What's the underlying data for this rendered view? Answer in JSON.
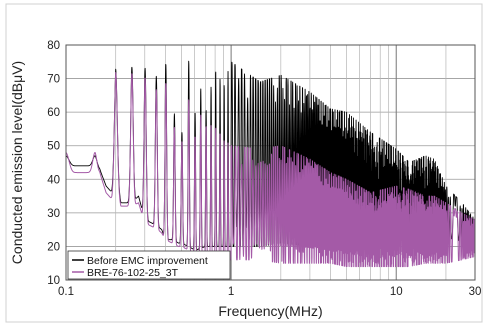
{
  "chart_data": {
    "type": "line",
    "title": "",
    "xlabel": "Frequency(MHz)",
    "ylabel": "Conducted emission level(dBμV)",
    "x_scale": "log",
    "xlim": [
      0.1,
      30
    ],
    "ylim": [
      10,
      80
    ],
    "x_ticks": [
      {
        "value": 0.1,
        "label": "0.1"
      },
      {
        "value": 1,
        "label": "1"
      },
      {
        "value": 10,
        "label": "10"
      },
      {
        "value": 30,
        "label": "30"
      }
    ],
    "y_ticks": [
      {
        "value": 10,
        "label": "10"
      },
      {
        "value": 20,
        "label": "20"
      },
      {
        "value": 30,
        "label": "30"
      },
      {
        "value": 40,
        "label": "40"
      },
      {
        "value": 50,
        "label": "50"
      },
      {
        "value": 60,
        "label": "60"
      },
      {
        "value": 70,
        "label": "70"
      },
      {
        "value": 80,
        "label": "80"
      }
    ],
    "grid": true,
    "legend_position": "bottom-left",
    "series": [
      {
        "name": "Before EMC improvement",
        "color": "#000000",
        "x": [
          0.15,
          0.16,
          0.175,
          0.19,
          0.2,
          0.215,
          0.25,
          0.275,
          0.3,
          0.33,
          0.36,
          0.38,
          0.4,
          0.44,
          0.48,
          0.5,
          0.55,
          0.6,
          0.62,
          0.7,
          0.8,
          0.9,
          1.0,
          1.5,
          2.0,
          3.0,
          4.0,
          5.0,
          7.0,
          10.0,
          12.0,
          15.0,
          17.0,
          20.0,
          25.0,
          30.0
        ],
        "y": [
          47,
          45,
          45,
          55,
          73,
          52,
          74,
          55,
          74,
          55,
          76,
          52,
          76,
          50,
          78,
          52,
          77,
          56,
          73,
          60,
          73,
          68,
          75,
          69,
          71,
          66,
          61,
          60,
          54,
          49,
          45,
          47,
          46,
          38,
          33,
          28
        ],
        "envelope_min": [
          44,
          43,
          38,
          36,
          40,
          33,
          33,
          35,
          28,
          27,
          26,
          25,
          22,
          22,
          21,
          21,
          20,
          19,
          19,
          20,
          20,
          20,
          20,
          20,
          21,
          20,
          20,
          20,
          19,
          20,
          21,
          20,
          20,
          20,
          20,
          20
        ]
      },
      {
        "name": "BRE-76-102-25_3T",
        "color": "#a45aa7",
        "x": [
          0.15,
          0.16,
          0.175,
          0.19,
          0.2,
          0.215,
          0.25,
          0.275,
          0.3,
          0.33,
          0.36,
          0.38,
          0.4,
          0.44,
          0.48,
          0.5,
          0.55,
          0.6,
          0.62,
          0.7,
          0.8,
          0.9,
          1.0,
          1.5,
          2.0,
          3.0,
          4.0,
          5.0,
          7.0,
          10.0,
          12.0,
          15.0,
          17.0,
          20.0,
          25.0,
          30.0
        ],
        "y": [
          48,
          45,
          45,
          55,
          72,
          52,
          72,
          55,
          71,
          54,
          71,
          52,
          70,
          49,
          68,
          50,
          65,
          50,
          62,
          56,
          56,
          52,
          50,
          49,
          50,
          46,
          42,
          40,
          36,
          38,
          37,
          35,
          35,
          33,
          30,
          28
        ],
        "envelope_min": [
          42,
          42,
          36,
          34,
          38,
          32,
          32,
          33,
          27,
          26,
          25,
          24,
          22,
          21,
          20,
          20,
          19,
          18,
          18,
          17,
          17,
          16,
          16,
          16,
          15,
          15,
          15,
          14,
          14,
          14,
          14,
          15,
          15,
          15,
          16,
          17
        ]
      }
    ]
  }
}
